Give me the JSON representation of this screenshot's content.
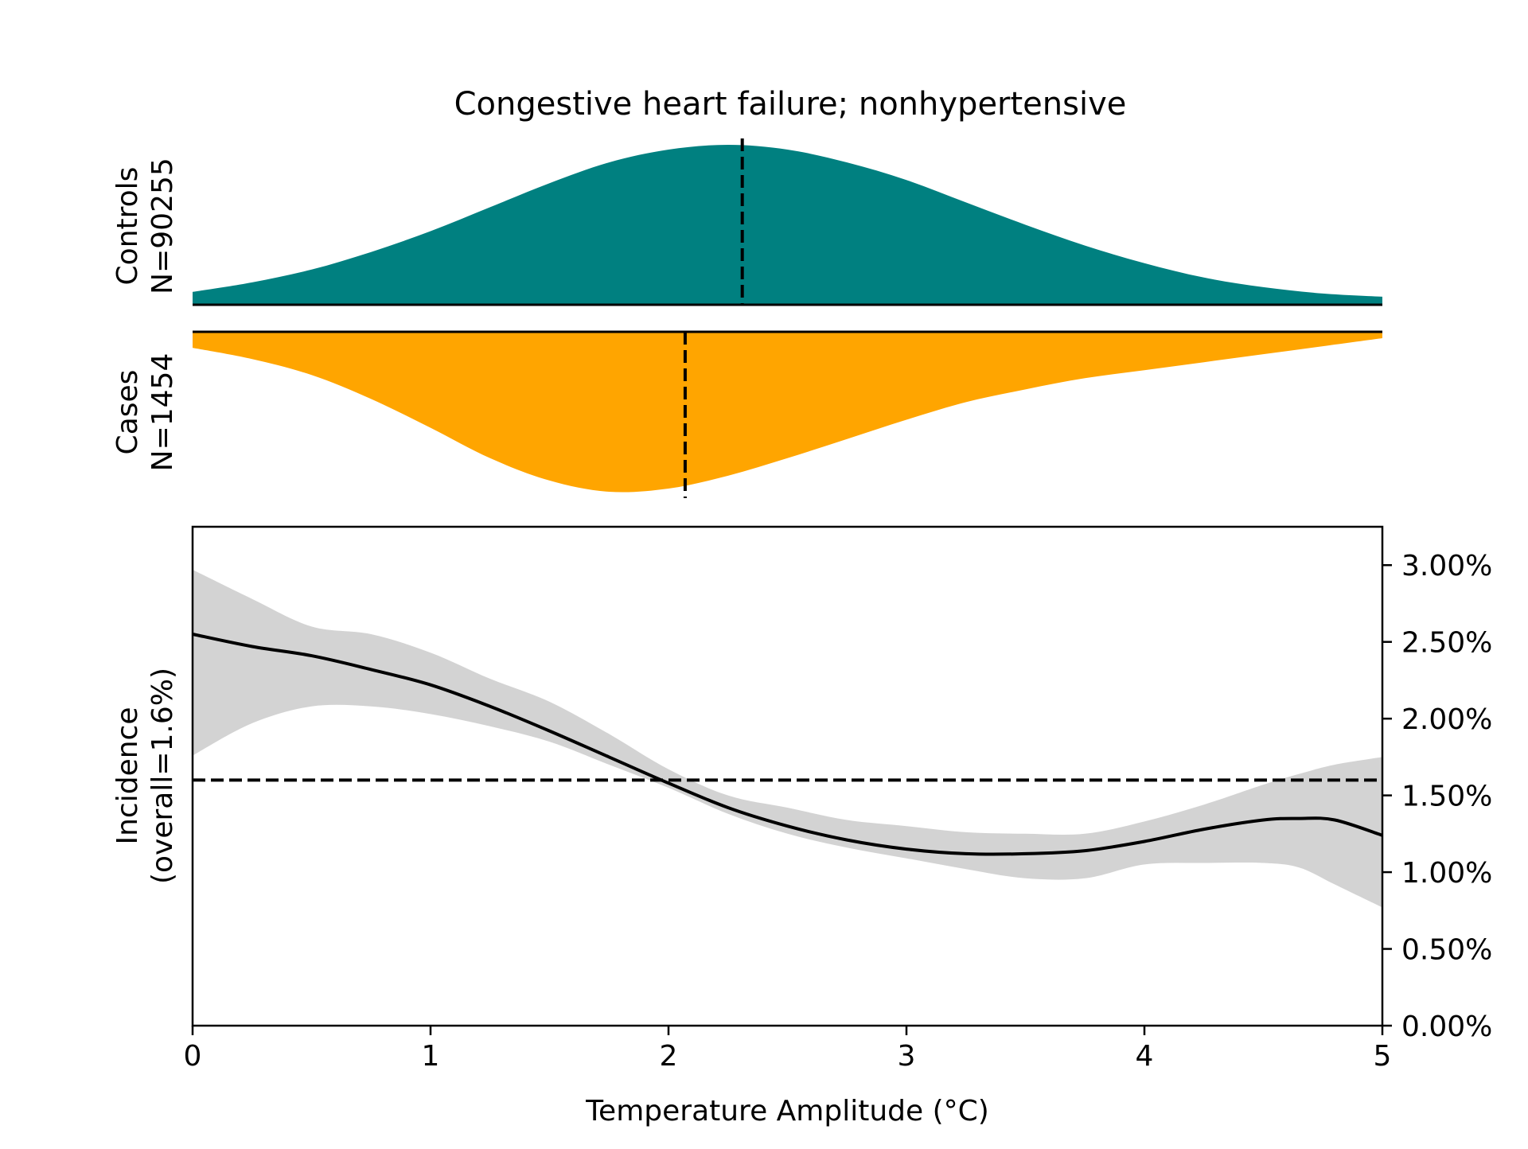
{
  "chart_data": {
    "title": "Congestive heart failure; nonhypertensive",
    "type": "area",
    "xlabel": "Temperature Amplitude (°C)",
    "ylabel": "Incidence\n(overall=1.6%)",
    "xlim": [
      0,
      5
    ],
    "ylim": [
      0,
      0.0325
    ],
    "x_ticks": [
      0,
      1,
      2,
      3,
      4,
      5
    ],
    "x_tick_labels": [
      "0",
      "1",
      "2",
      "3",
      "4",
      "5"
    ],
    "y_ticks": [
      0,
      0.005,
      0.01,
      0.015,
      0.02,
      0.025,
      0.03
    ],
    "y_tick_labels": [
      "0.00%",
      "0.50%",
      "1.00%",
      "1.50%",
      "2.00%",
      "2.50%",
      "3.00%"
    ],
    "y_axis_side": "right",
    "overall_incidence": 0.016,
    "colors": {
      "controls": "#008080",
      "cases": "#ffa500",
      "ci_band": "#d3d3d3",
      "line": "#000000"
    },
    "controls": {
      "label": "Controls\nN=90255",
      "median": 2.31,
      "x": [
        0,
        0.25,
        0.5,
        0.75,
        1.0,
        1.25,
        1.5,
        1.75,
        2.0,
        2.25,
        2.5,
        2.75,
        3.0,
        3.25,
        3.5,
        3.75,
        4.0,
        4.25,
        4.5,
        4.75,
        5.0
      ],
      "density": [
        0.08,
        0.14,
        0.22,
        0.33,
        0.46,
        0.61,
        0.76,
        0.89,
        0.97,
        1.0,
        0.97,
        0.89,
        0.78,
        0.64,
        0.5,
        0.37,
        0.26,
        0.17,
        0.11,
        0.07,
        0.05
      ]
    },
    "cases": {
      "label": "Cases\nN=1454",
      "median": 2.07,
      "x": [
        0,
        0.25,
        0.5,
        0.75,
        1.0,
        1.25,
        1.5,
        1.75,
        2.0,
        2.25,
        2.5,
        2.75,
        3.0,
        3.25,
        3.5,
        3.75,
        4.0,
        4.25,
        4.5,
        4.75,
        5.0
      ],
      "density": [
        0.1,
        0.17,
        0.27,
        0.42,
        0.6,
        0.79,
        0.93,
        1.0,
        0.98,
        0.9,
        0.79,
        0.67,
        0.55,
        0.44,
        0.36,
        0.29,
        0.24,
        0.19,
        0.14,
        0.09,
        0.04
      ]
    },
    "incidence": {
      "x": [
        0,
        0.25,
        0.5,
        0.75,
        1.0,
        1.25,
        1.5,
        1.75,
        2.0,
        2.25,
        2.5,
        2.75,
        3.0,
        3.25,
        3.5,
        3.75,
        4.0,
        4.25,
        4.5,
        4.65,
        4.8,
        5.0
      ],
      "y": [
        0.0255,
        0.0247,
        0.0241,
        0.0232,
        0.0222,
        0.0208,
        0.0192,
        0.0175,
        0.0158,
        0.0142,
        0.013,
        0.0121,
        0.0115,
        0.0112,
        0.0112,
        0.0114,
        0.012,
        0.0128,
        0.0134,
        0.0135,
        0.0134,
        0.0124
      ],
      "ci_lower": [
        0.0176,
        0.0197,
        0.0208,
        0.0208,
        0.0203,
        0.0195,
        0.0185,
        0.017,
        0.0155,
        0.0138,
        0.0125,
        0.0116,
        0.0109,
        0.0102,
        0.0096,
        0.0096,
        0.0105,
        0.0106,
        0.0106,
        0.0103,
        0.0092,
        0.0077
      ],
      "ci_upper": [
        0.0297,
        0.0278,
        0.026,
        0.0255,
        0.0243,
        0.0226,
        0.0211,
        0.019,
        0.0167,
        0.015,
        0.0142,
        0.0134,
        0.013,
        0.0126,
        0.0125,
        0.0125,
        0.0133,
        0.0144,
        0.0157,
        0.0164,
        0.017,
        0.0175
      ]
    }
  }
}
